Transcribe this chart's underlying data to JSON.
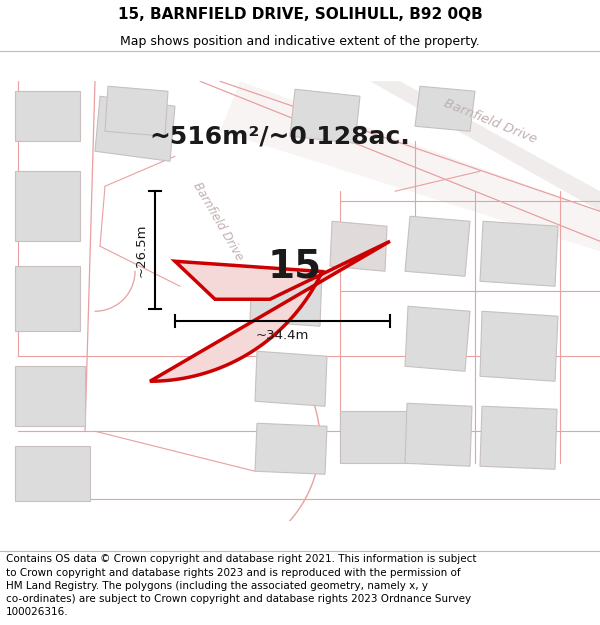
{
  "title": "15, BARNFIELD DRIVE, SOLIHULL, B92 0QB",
  "subtitle": "Map shows position and indicative extent of the property.",
  "footer": "Contains OS data © Crown copyright and database right 2021. This information is subject\nto Crown copyright and database rights 2023 and is reproduced with the permission of\nHM Land Registry. The polygons (including the associated geometry, namely x, y\nco-ordinates) are subject to Crown copyright and database rights 2023 Ordnance Survey\n100026316.",
  "area_text": "~516m²/~0.128ac.",
  "plot_number": "15",
  "dim_width": "~34.4m",
  "dim_height": "~26.5m",
  "map_bg_color": "#ffffff",
  "plot_fill_color": "#f5d8d8",
  "plot_edge_color": "#cc0000",
  "road_line_color": "#e8a0a0",
  "road_fill_color": "#f0e8e8",
  "building_color": "#dcdcdc",
  "building_edge_color": "#c8c0c0",
  "barnfield_label_color": "#c0b0b0",
  "title_fontsize": 11,
  "subtitle_fontsize": 9,
  "footer_fontsize": 7.5,
  "area_fontsize": 18,
  "plot_num_fontsize": 28
}
